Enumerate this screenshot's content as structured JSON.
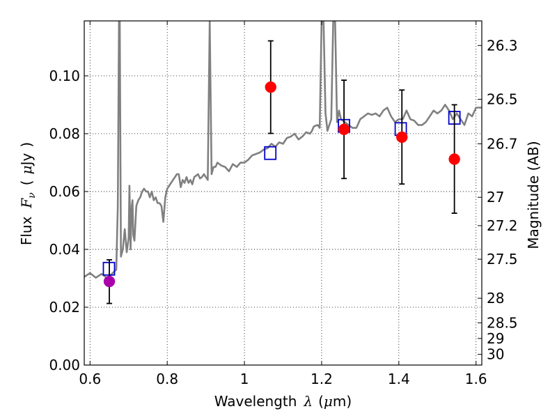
{
  "chart_data": {
    "type": "scatter",
    "xlabel": "Wavelength λ (μm)",
    "xlabel_parts": [
      "Wavelength",
      "λ",
      "(",
      "μ",
      "m)"
    ],
    "ylabel": "Flux F_ν (μJy)",
    "ylabel_parts": [
      "Flux",
      "F",
      "ν",
      "(",
      "μ",
      "Jy",
      ")"
    ],
    "ylabel_right": "Magnitude (AB)",
    "xlim": [
      0.585,
      1.615
    ],
    "ylim": [
      0.0,
      0.119
    ],
    "grid": true,
    "grid_style": "dotted",
    "x_ticks": [
      0.6,
      0.8,
      1.0,
      1.2,
      1.4,
      1.6
    ],
    "x_tick_labels": [
      "0.6",
      "0.8",
      "1",
      "1.2",
      "1.4",
      "1.6"
    ],
    "y_ticks": [
      0.0,
      0.02,
      0.04,
      0.06,
      0.08,
      0.1
    ],
    "y_tick_labels": [
      "0.00",
      "0.02",
      "0.04",
      "0.06",
      "0.08",
      "0.10"
    ],
    "right_ticks": [
      {
        "label": "26.3",
        "flux": 0.1105
      },
      {
        "label": "26.5",
        "flux": 0.0919
      },
      {
        "label": "26.7",
        "flux": 0.0765
      },
      {
        "label": "27",
        "flux": 0.058
      },
      {
        "label": "27.2",
        "flux": 0.0482
      },
      {
        "label": "27.5",
        "flux": 0.0366
      },
      {
        "label": "28",
        "flux": 0.0231
      },
      {
        "label": "28.5",
        "flux": 0.0146
      },
      {
        "label": "29",
        "flux": 0.0092
      },
      {
        "label": "30",
        "flux": 0.0037
      }
    ],
    "colors": {
      "model": "#808080",
      "photometry": "#ff0000",
      "synthetic": "#0000cc",
      "optical_point": "#aa00aa",
      "errorbar": "#000000",
      "grid": "#000000"
    },
    "series": [
      {
        "type": "line",
        "x": [
          0.585,
          0.6,
          0.615,
          0.63,
          0.645,
          0.66,
          0.668,
          0.672,
          0.675,
          0.677,
          0.68,
          0.685,
          0.69,
          0.695,
          0.7,
          0.702,
          0.705,
          0.708,
          0.71,
          0.712,
          0.715,
          0.72,
          0.725,
          0.73,
          0.735,
          0.74,
          0.745,
          0.75,
          0.755,
          0.76,
          0.765,
          0.77,
          0.775,
          0.78,
          0.785,
          0.79,
          0.795,
          0.8,
          0.805,
          0.81,
          0.815,
          0.82,
          0.825,
          0.83,
          0.835,
          0.84,
          0.845,
          0.85,
          0.855,
          0.86,
          0.865,
          0.87,
          0.875,
          0.88,
          0.885,
          0.89,
          0.895,
          0.9,
          0.905,
          0.91,
          0.915,
          0.92,
          0.925,
          0.93,
          0.94,
          0.95,
          0.96,
          0.97,
          0.98,
          0.99,
          1.0,
          1.01,
          1.02,
          1.03,
          1.04,
          1.05,
          1.06,
          1.07,
          1.08,
          1.09,
          1.1,
          1.11,
          1.12,
          1.13,
          1.14,
          1.15,
          1.16,
          1.17,
          1.175,
          1.18,
          1.19,
          1.195,
          1.2,
          1.205,
          1.21,
          1.215,
          1.22,
          1.225,
          1.23,
          1.235,
          1.24,
          1.245,
          1.25,
          1.26,
          1.27,
          1.28,
          1.29,
          1.3,
          1.31,
          1.32,
          1.33,
          1.34,
          1.35,
          1.36,
          1.37,
          1.38,
          1.39,
          1.4,
          1.41,
          1.42,
          1.43,
          1.44,
          1.45,
          1.46,
          1.47,
          1.48,
          1.49,
          1.5,
          1.51,
          1.52,
          1.53,
          1.54,
          1.55,
          1.56,
          1.57,
          1.58,
          1.59,
          1.6,
          1.615
        ],
        "y": [
          0.0305,
          0.0318,
          0.0302,
          0.0315,
          0.03,
          0.032,
          0.033,
          0.055,
          0.119,
          0.119,
          0.0375,
          0.04,
          0.047,
          0.039,
          0.044,
          0.062,
          0.04,
          0.055,
          0.057,
          0.045,
          0.043,
          0.055,
          0.057,
          0.058,
          0.06,
          0.061,
          0.06,
          0.06,
          0.058,
          0.06,
          0.057,
          0.058,
          0.056,
          0.056,
          0.055,
          0.0495,
          0.058,
          0.061,
          0.062,
          0.063,
          0.064,
          0.065,
          0.066,
          0.066,
          0.0615,
          0.064,
          0.063,
          0.065,
          0.063,
          0.064,
          0.0625,
          0.065,
          0.0655,
          0.066,
          0.0645,
          0.065,
          0.066,
          0.065,
          0.064,
          0.119,
          0.066,
          0.0685,
          0.0685,
          0.07,
          0.069,
          0.0685,
          0.067,
          0.0695,
          0.0685,
          0.07,
          0.07,
          0.071,
          0.0725,
          0.073,
          0.0735,
          0.0745,
          0.075,
          0.0765,
          0.0755,
          0.077,
          0.0765,
          0.0785,
          0.079,
          0.08,
          0.078,
          0.079,
          0.0805,
          0.08,
          0.081,
          0.0825,
          0.083,
          0.082,
          0.119,
          0.119,
          0.087,
          0.081,
          0.083,
          0.085,
          0.119,
          0.119,
          0.084,
          0.088,
          0.085,
          0.084,
          0.083,
          0.082,
          0.082,
          0.085,
          0.086,
          0.087,
          0.0865,
          0.087,
          0.086,
          0.088,
          0.089,
          0.086,
          0.084,
          0.085,
          0.085,
          0.088,
          0.085,
          0.0845,
          0.083,
          0.083,
          0.084,
          0.086,
          0.088,
          0.087,
          0.088,
          0.09,
          0.088,
          0.085,
          0.087,
          0.085,
          0.083,
          0.087,
          0.086,
          0.089,
          0.089
        ]
      },
      {
        "type": "errorbar-points",
        "marker": "circle",
        "color_key": "photometry",
        "points": [
          {
            "x": 1.068,
            "y": 0.0961,
            "ylow": 0.0801,
            "yhigh": 0.1121
          },
          {
            "x": 1.258,
            "y": 0.0815,
            "ylow": 0.0645,
            "yhigh": 0.0985
          },
          {
            "x": 1.408,
            "y": 0.0788,
            "ylow": 0.0626,
            "yhigh": 0.0951
          },
          {
            "x": 1.544,
            "y": 0.0712,
            "ylow": 0.0525,
            "yhigh": 0.09
          }
        ]
      },
      {
        "type": "errorbar-points",
        "marker": "circle",
        "color_key": "optical_point",
        "points": [
          {
            "x": 0.65,
            "y": 0.0289,
            "ylow": 0.0213,
            "yhigh": 0.0364
          }
        ]
      },
      {
        "type": "points",
        "marker": "square-open",
        "color_key": "synthetic",
        "points": [
          {
            "x": 0.649,
            "y": 0.0333
          },
          {
            "x": 1.067,
            "y": 0.0733
          },
          {
            "x": 1.258,
            "y": 0.0827
          },
          {
            "x": 1.405,
            "y": 0.0816
          },
          {
            "x": 1.544,
            "y": 0.0855
          }
        ]
      }
    ]
  }
}
